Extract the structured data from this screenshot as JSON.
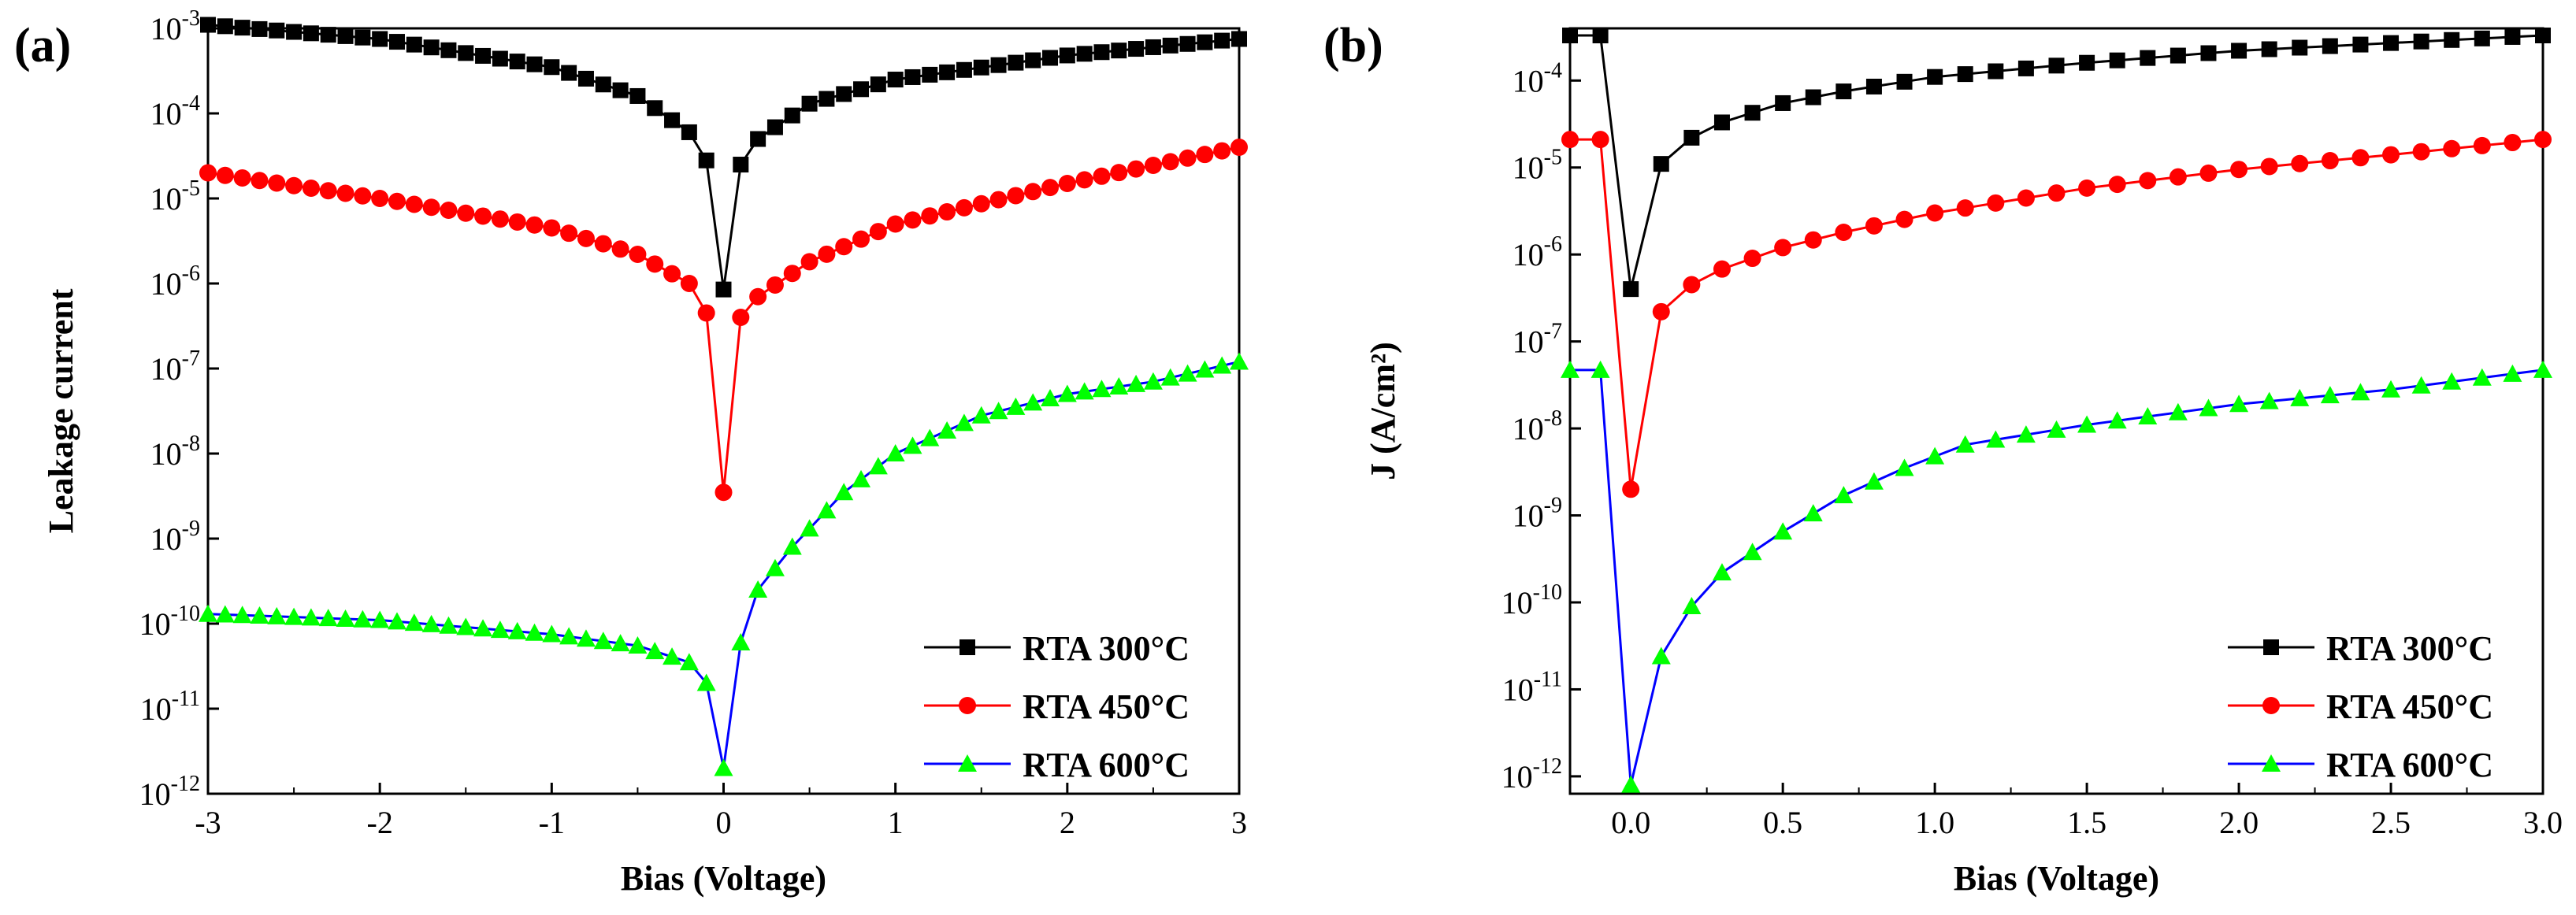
{
  "colors": {
    "RTA 300°C": {
      "line": "#000000",
      "marker": "#000000"
    },
    "RTA 450°C": {
      "line": "#ff0000",
      "marker": "#ff0000"
    },
    "RTA 600°C": {
      "line": "#0000ff",
      "marker": "#00ff00"
    }
  },
  "chart_data": [
    {
      "panel_label": "(a)",
      "type": "line",
      "yscale": "log",
      "xlabel": "Bias (Voltage)",
      "ylabel": "Leakage current",
      "xlim": [
        -3,
        3
      ],
      "ylim_exp": [
        -12,
        -3
      ],
      "xticks": [
        -3,
        -2,
        -1,
        0,
        1,
        2,
        3
      ],
      "xtick_labels": [
        "-3",
        "-2",
        "-1",
        "0",
        "1",
        "2",
        "3"
      ],
      "yticks_exp": [
        -12,
        -11,
        -10,
        -9,
        -8,
        -7,
        -6,
        -5,
        -4,
        -3
      ],
      "legend_position": "bottom-right",
      "series": [
        {
          "name": "RTA 300°C",
          "marker": "square",
          "anchors": [
            [
              -3,
              0.0011
            ],
            [
              -2,
              0.00075
            ],
            [
              -1,
              0.00035
            ],
            [
              -0.5,
              0.00016
            ],
            [
              -0.2,
              6e-05
            ],
            [
              -0.1,
              2.8e-05
            ],
            [
              0,
              8.5e-07
            ],
            [
              0.1,
              2.5e-05
            ],
            [
              0.2,
              5e-05
            ],
            [
              0.5,
              0.00013
            ],
            [
              1,
              0.00025
            ],
            [
              2,
              0.00048
            ],
            [
              3,
              0.00075
            ]
          ]
        },
        {
          "name": "RTA 450°C",
          "marker": "circle",
          "anchors": [
            [
              -3,
              2e-05
            ],
            [
              -2,
              1e-05
            ],
            [
              -1,
              4.5e-06
            ],
            [
              -0.5,
              2.2e-06
            ],
            [
              -0.2,
              1e-06
            ],
            [
              -0.1,
              4.5e-07
            ],
            [
              0,
              3.5e-09
            ],
            [
              0.1,
              4e-07
            ],
            [
              0.2,
              7e-07
            ],
            [
              0.5,
              1.8e-06
            ],
            [
              1,
              5e-06
            ],
            [
              2,
              1.5e-05
            ],
            [
              3,
              4e-05
            ]
          ]
        },
        {
          "name": "RTA 600°C",
          "marker": "triangle",
          "anchors": [
            [
              -3,
              1.3e-10
            ],
            [
              -2,
              1.1e-10
            ],
            [
              -1,
              7.5e-11
            ],
            [
              -0.5,
              5.5e-11
            ],
            [
              -0.2,
              3.5e-11
            ],
            [
              -0.1,
              2e-11
            ],
            [
              0,
              2e-12
            ],
            [
              0.1,
              6e-11
            ],
            [
              0.2,
              2.5e-10
            ],
            [
              0.4,
              8e-10
            ],
            [
              0.7,
              3.5e-09
            ],
            [
              1,
              1e-08
            ],
            [
              1.5,
              2.8e-08
            ],
            [
              2,
              5e-08
            ],
            [
              2.5,
              7e-08
            ],
            [
              3,
              1.2e-07
            ]
          ]
        }
      ]
    },
    {
      "panel_label": "(b)",
      "type": "line",
      "yscale": "log",
      "xlabel": "Bias (Voltage)",
      "ylabel": "J (A/cm²)",
      "xlim": [
        -0.2,
        3.0
      ],
      "ylim_exp": [
        -12.2,
        -3.4
      ],
      "xticks": [
        0,
        0.5,
        1,
        1.5,
        2,
        2.5,
        3
      ],
      "xtick_labels": [
        "0.0",
        "0.5",
        "1.0",
        "1.5",
        "2.0",
        "2.5",
        "3.0"
      ],
      "yticks_exp": [
        -12,
        -11,
        -10,
        -9,
        -8,
        -7,
        -6,
        -5,
        -4
      ],
      "legend_position": "bottom-right",
      "series": [
        {
          "name": "RTA 300°C",
          "marker": "square",
          "anchors": [
            [
              0,
              4e-07
            ],
            [
              0.1,
              1.1e-05
            ],
            [
              0.2,
              2.2e-05
            ],
            [
              0.3,
              3.3e-05
            ],
            [
              0.5,
              5.5e-05
            ],
            [
              0.7,
              7.5e-05
            ],
            [
              1,
              0.00011
            ],
            [
              1.5,
              0.00016
            ],
            [
              2,
              0.00022
            ],
            [
              2.5,
              0.00027
            ],
            [
              3,
              0.00033
            ]
          ]
        },
        {
          "name": "RTA 450°C",
          "marker": "circle",
          "anchors": [
            [
              0,
              2e-09
            ],
            [
              0.1,
              2.2e-07
            ],
            [
              0.2,
              4.5e-07
            ],
            [
              0.3,
              6.8e-07
            ],
            [
              0.5,
              1.2e-06
            ],
            [
              0.7,
              1.8e-06
            ],
            [
              1,
              3e-06
            ],
            [
              1.5,
              5.8e-06
            ],
            [
              2,
              9.5e-06
            ],
            [
              2.5,
              1.4e-05
            ],
            [
              3,
              2.1e-05
            ]
          ]
        },
        {
          "name": "RTA 600°C",
          "marker": "triangle",
          "anchors": [
            [
              0,
              8e-13
            ],
            [
              0.1,
              2.4e-11
            ],
            [
              0.2,
              9e-11
            ],
            [
              0.3,
              2.2e-10
            ],
            [
              0.5,
              6.5e-10
            ],
            [
              0.7,
              1.7e-09
            ],
            [
              0.9,
              3.5e-09
            ],
            [
              1.1,
              6.5e-09
            ],
            [
              1.5,
              1.1e-08
            ],
            [
              2,
              1.9e-08
            ],
            [
              2.5,
              2.8e-08
            ],
            [
              3,
              4.7e-08
            ]
          ]
        }
      ]
    }
  ]
}
